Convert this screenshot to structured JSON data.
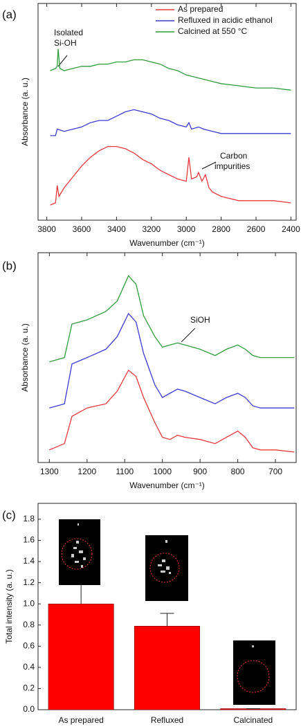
{
  "chart_data": [
    {
      "label": "(a)",
      "type": "line",
      "xlabel": "Wavenumber (cm⁻¹)",
      "ylabel": "Absorbance (a. u.)",
      "xlim": [
        3850,
        2370
      ],
      "xticks": [
        3800,
        3600,
        3400,
        3200,
        3000,
        2800,
        2600,
        2400
      ],
      "ylim": [
        0,
        100
      ],
      "legend": "upper right",
      "series": [
        {
          "name": "As prepared",
          "color": "#e8373c",
          "x": [
            3780,
            3750,
            3740,
            3730,
            3700,
            3650,
            3600,
            3550,
            3500,
            3450,
            3400,
            3350,
            3300,
            3250,
            3200,
            3150,
            3100,
            3050,
            3000,
            2985,
            2970,
            2940,
            2930,
            2910,
            2890,
            2870,
            2850,
            2800,
            2750,
            2700,
            2600,
            2500,
            2400
          ],
          "values": [
            7,
            8,
            16,
            11,
            15,
            20,
            25,
            29,
            32,
            34,
            34,
            33,
            31,
            28,
            26,
            23,
            21,
            19,
            18,
            29,
            19,
            20,
            22,
            18,
            21,
            15,
            13,
            11,
            10,
            9,
            9,
            9,
            8
          ]
        },
        {
          "name": "Refluxed in acidic ethanol",
          "color": "#3b3bd4",
          "x": [
            3780,
            3750,
            3740,
            3700,
            3650,
            3600,
            3550,
            3500,
            3450,
            3400,
            3350,
            3300,
            3250,
            3200,
            3150,
            3100,
            3050,
            3000,
            2985,
            2970,
            2930,
            2900,
            2850,
            2800,
            2700,
            2600,
            2500,
            2400
          ],
          "values": [
            39,
            39,
            42,
            41,
            42,
            43,
            45,
            46,
            46,
            48,
            50,
            51,
            50,
            49,
            47,
            46,
            44,
            43,
            45,
            42,
            43,
            42,
            41,
            40,
            40,
            40,
            40,
            40
          ]
        },
        {
          "name": "Calcined at 550 °C",
          "color": "#2e9e3a",
          "x": [
            3780,
            3750,
            3740,
            3735,
            3725,
            3700,
            3650,
            3600,
            3550,
            3500,
            3450,
            3400,
            3350,
            3300,
            3250,
            3200,
            3150,
            3100,
            3050,
            3000,
            2950,
            2900,
            2850,
            2800,
            2700,
            2600,
            2500,
            2400
          ],
          "values": [
            69,
            70,
            71,
            79,
            70,
            69,
            70,
            71,
            71,
            72,
            72,
            73,
            73,
            74,
            74,
            73,
            72,
            70,
            69,
            67,
            66,
            65,
            64,
            63,
            62,
            61,
            61,
            60
          ]
        }
      ],
      "annotations": [
        {
          "lines": [
            "Isolated",
            "Si-OH"
          ]
        },
        {
          "lines": [
            "Carbon",
            "impurities"
          ]
        }
      ]
    },
    {
      "label": "(b)",
      "type": "line",
      "xlabel": "Wavenumber (cm⁻¹)",
      "ylabel": "Absorbance (a. u.)",
      "xlim": [
        1330,
        645
      ],
      "xticks": [
        1300,
        1200,
        1100,
        1000,
        900,
        800,
        700
      ],
      "ylim": [
        0,
        100
      ],
      "series": [
        {
          "color": "#e8373c",
          "x": [
            1300,
            1260,
            1240,
            1200,
            1150,
            1120,
            1090,
            1070,
            1050,
            1020,
            1000,
            980,
            960,
            940,
            900,
            860,
            830,
            800,
            780,
            760,
            740,
            700,
            650
          ],
          "values": [
            6,
            9,
            22,
            26,
            28,
            34,
            44,
            41,
            31,
            19,
            12,
            11,
            13,
            12,
            11,
            9,
            12,
            15,
            12,
            7,
            6,
            6,
            5
          ]
        },
        {
          "color": "#3b3bd4",
          "x": [
            1300,
            1260,
            1240,
            1200,
            1150,
            1120,
            1090,
            1070,
            1050,
            1020,
            1000,
            980,
            960,
            940,
            900,
            860,
            830,
            800,
            780,
            760,
            740,
            700,
            650
          ],
          "values": [
            26,
            28,
            47,
            50,
            54,
            60,
            71,
            67,
            52,
            37,
            31,
            33,
            35,
            34,
            31,
            28,
            31,
            33,
            31,
            27,
            26,
            26,
            26
          ]
        },
        {
          "color": "#2e9e3a",
          "x": [
            1300,
            1260,
            1240,
            1200,
            1150,
            1120,
            1090,
            1070,
            1050,
            1020,
            1000,
            980,
            960,
            940,
            900,
            860,
            830,
            800,
            780,
            760,
            740,
            700,
            650
          ],
          "values": [
            48,
            50,
            66,
            68,
            72,
            77,
            89,
            85,
            70,
            60,
            55,
            56,
            57,
            56,
            54,
            51,
            54,
            56,
            54,
            51,
            50,
            50,
            50
          ]
        }
      ],
      "annotations": [
        {
          "lines": [
            "SiOH"
          ]
        }
      ]
    },
    {
      "label": "(c)",
      "type": "bar",
      "ylabel": "Total intensity (a. u.)",
      "color": "#ff0000",
      "categories": [
        "As prepared",
        "Refluxed",
        "Calcinated"
      ],
      "values": [
        1.0,
        0.79,
        0.01
      ],
      "errors": [
        0.22,
        0.12,
        0
      ],
      "ylim": [
        0,
        1.95
      ],
      "yticks": [
        {
          "value": 0,
          "label": "0.0"
        },
        0.2,
        0.4,
        0.6,
        0.8,
        {
          "value": 1,
          "label": "1.0"
        },
        1.2,
        1.4,
        1.6,
        1.8
      ]
    }
  ]
}
